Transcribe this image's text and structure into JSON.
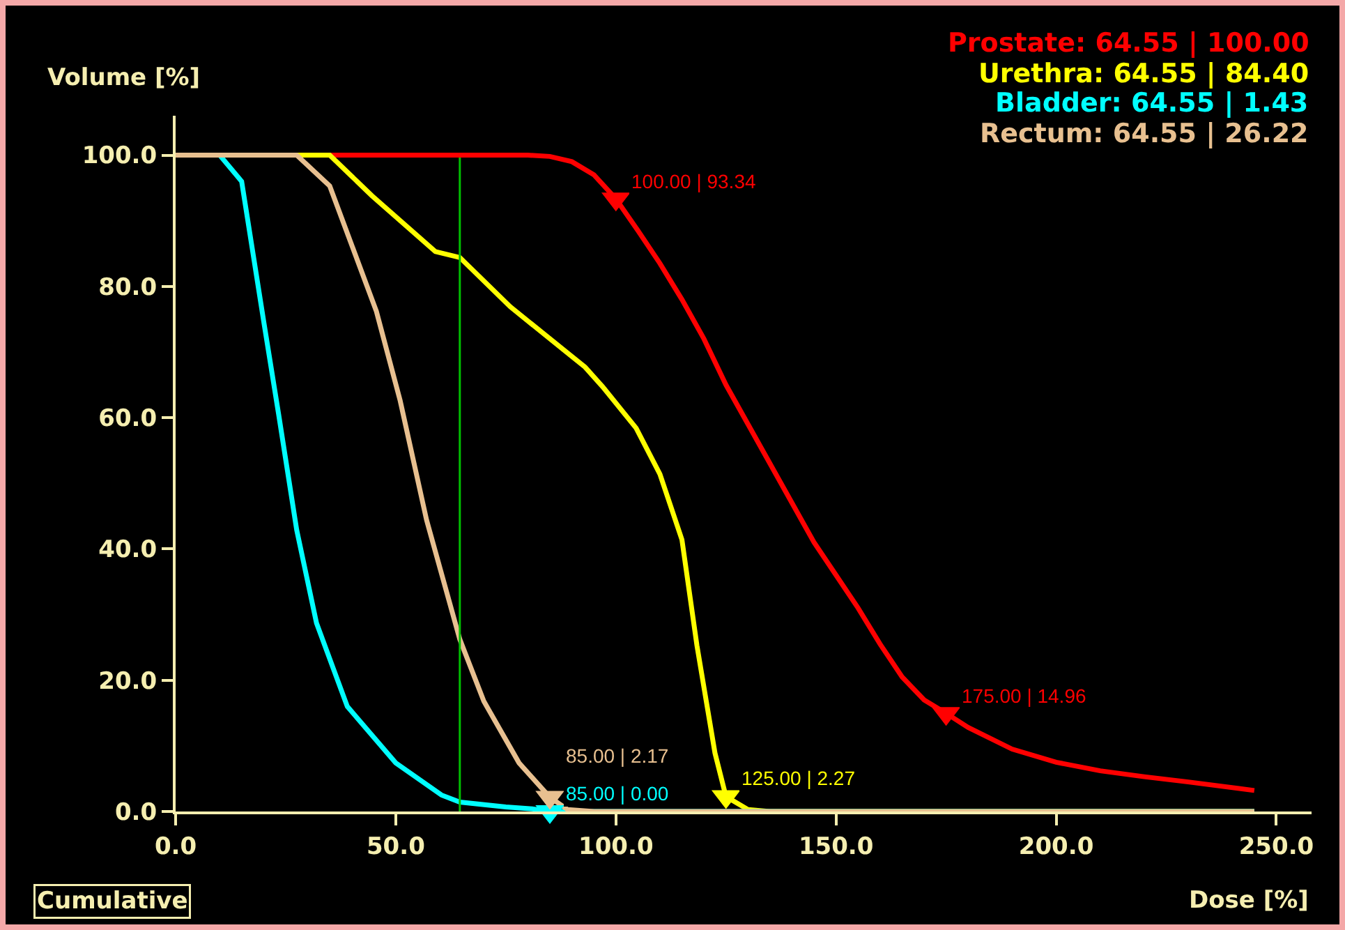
{
  "chart_data": {
    "type": "line",
    "xlabel": "Dose [%]",
    "ylabel": "Volume [%]",
    "xlim": [
      0,
      258
    ],
    "ylim": [
      0,
      106
    ],
    "xticks": [
      {
        "value": 0,
        "label": "0.0"
      },
      {
        "value": 50,
        "label": "50.0"
      },
      {
        "value": 100,
        "label": "100.0"
      },
      {
        "value": 150,
        "label": "150.0"
      },
      {
        "value": 200,
        "label": "200.0"
      },
      {
        "value": 250,
        "label": "250.0"
      }
    ],
    "yticks": [
      {
        "value": 0,
        "label": "0.0"
      },
      {
        "value": 20,
        "label": "20.0"
      },
      {
        "value": 40,
        "label": "40.0"
      },
      {
        "value": 60,
        "label": "60.0"
      },
      {
        "value": 80,
        "label": "80.0"
      },
      {
        "value": 100,
        "label": "100.0"
      }
    ],
    "grid": false,
    "legend": "top right",
    "line_style": "solid",
    "ref_lines": [
      {
        "axis": "x",
        "value": 64.55,
        "color": "#00c000"
      }
    ],
    "annotations": [
      "Cumulative"
    ],
    "series": [
      {
        "name": "Prostate: 64.55 | 100.00",
        "color": "#ff0000",
        "x": [
          0,
          80,
          85,
          90,
          95,
          100,
          105,
          110,
          115,
          120,
          125,
          130,
          135,
          140,
          145,
          150,
          155,
          160,
          165,
          170,
          175,
          180,
          190,
          200,
          210,
          220,
          230,
          245
        ],
        "values": [
          100,
          100,
          99.8,
          99,
          97,
          93.34,
          88.5,
          83.5,
          78,
          72,
          65,
          59,
          53,
          47,
          41,
          36,
          31,
          25.5,
          20.5,
          17,
          14.96,
          12.8,
          9.5,
          7.5,
          6.2,
          5.3,
          4.5,
          3.2
        ]
      },
      {
        "name": "Urethra: 64.55 | 84.40",
        "color": "#ffff00",
        "x": [
          0,
          35,
          44.6,
          59,
          64.55,
          76,
          93,
          97,
          104.6,
          110,
          115,
          118.4,
          122.5,
          125,
          130,
          135,
          245
        ],
        "values": [
          100,
          100,
          93.8,
          85.3,
          84.4,
          76.9,
          67.7,
          64.7,
          58.4,
          51.4,
          41.4,
          25.3,
          8.9,
          2.27,
          0.3,
          0,
          0
        ]
      },
      {
        "name": "Bladder: 64.55 | 1.43",
        "color": "#00ffff",
        "x": [
          0,
          10,
          15,
          20,
          23.4,
          27.5,
          32,
          39,
          50,
          60.4,
          64.55,
          75,
          81,
          85,
          90,
          245
        ],
        "values": [
          100,
          100,
          96,
          74.7,
          60.5,
          42.9,
          28.7,
          16,
          7.4,
          2.5,
          1.43,
          0.7,
          0.4,
          0,
          0,
          0
        ]
      },
      {
        "name": "Rectum: 64.55 | 26.22",
        "color": "#e8c090",
        "x": [
          0,
          27.5,
          35,
          45.6,
          51,
          57,
          64.55,
          70,
          78,
          85,
          89,
          95,
          245
        ],
        "values": [
          100,
          100,
          95.3,
          76.2,
          62.6,
          44.4,
          26.22,
          16.8,
          7.4,
          2.17,
          0.3,
          0,
          0
        ]
      },
      {
        "type": "scatter",
        "color": "#ff0000",
        "marker": "triangle",
        "x": [
          100,
          175
        ],
        "values": [
          93.34,
          14.96
        ],
        "value_labels": [
          "100.00 | 93.34",
          "175.00 | 14.96"
        ]
      },
      {
        "type": "scatter",
        "color": "#ffff00",
        "marker": "triangle",
        "x": [
          125
        ],
        "values": [
          2.27
        ],
        "value_labels": [
          "125.00 | 2.27"
        ]
      },
      {
        "type": "scatter",
        "color": "#00ffff",
        "marker": "triangle",
        "x": [
          85
        ],
        "values": [
          0
        ],
        "value_labels": [
          "85.00 | 0.00"
        ]
      },
      {
        "type": "scatter",
        "color": "#e8c090",
        "marker": "triangle",
        "x": [
          85
        ],
        "values": [
          2.17
        ],
        "value_labels": [
          "85.00 | 2.17"
        ]
      }
    ]
  }
}
